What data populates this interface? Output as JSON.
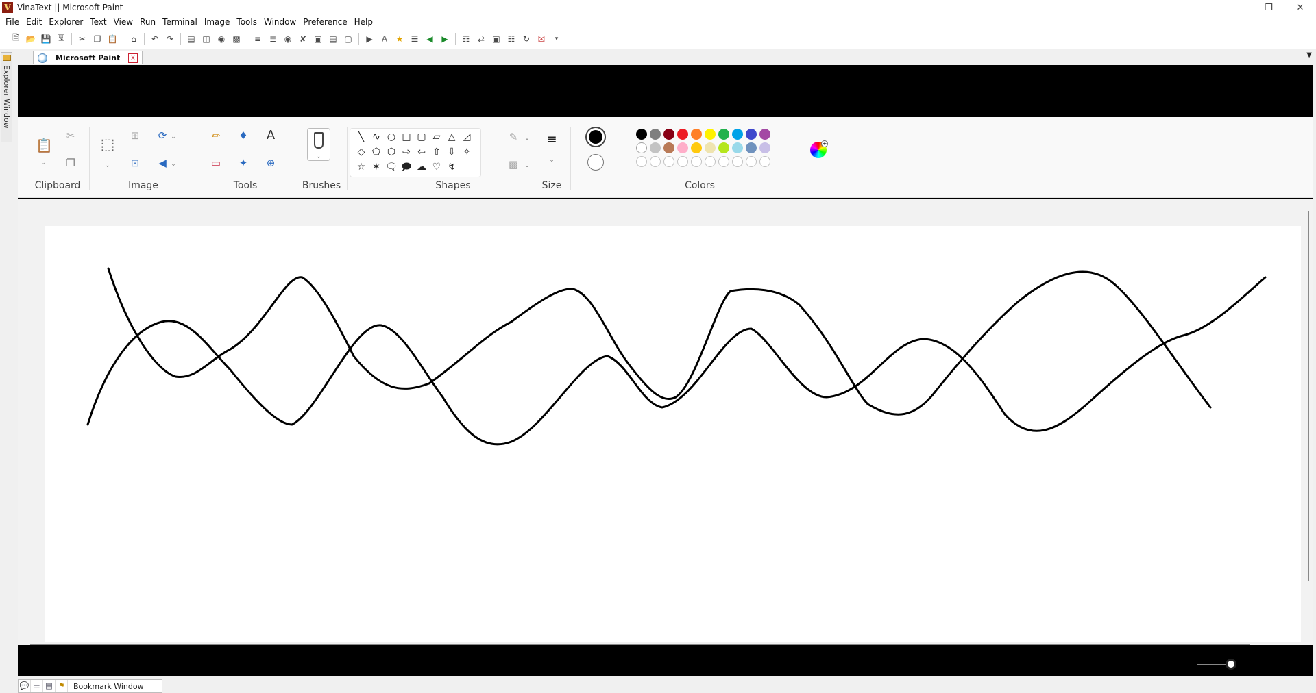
{
  "window": {
    "title": "VinaText || Microsoft Paint",
    "logo_letter": "V"
  },
  "menu": [
    "File",
    "Edit",
    "Explorer",
    "Text",
    "View",
    "Run",
    "Terminal",
    "Image",
    "Tools",
    "Window",
    "Preference",
    "Help"
  ],
  "left_panel": {
    "explorer_label": "Explorer Window"
  },
  "tab": {
    "label": "Microsoft Paint",
    "close": "x"
  },
  "ribbon": {
    "groups": {
      "clipboard": "Clipboard",
      "image": "Image",
      "tools": "Tools",
      "brushes": "Brushes",
      "shapes": "Shapes",
      "size": "Size",
      "colors": "Colors"
    }
  },
  "colors": {
    "primary": "#000000",
    "secondary": "#ffffff",
    "palette_row1": [
      "#000000",
      "#7f7f7f",
      "#880015",
      "#ed1c24",
      "#ff7f27",
      "#fff200",
      "#22b14c",
      "#00a2e8",
      "#3f48cc",
      "#a349a4"
    ],
    "palette_row2": [
      "#ffffff",
      "#c3c3c3",
      "#b97a57",
      "#ffaec9",
      "#ffc90e",
      "#efe4b0",
      "#b5e61d",
      "#99d9ea",
      "#7092be",
      "#c8bfe7"
    ],
    "palette_row3_empty": 10
  },
  "bottom": {
    "bookmark_label": "Bookmark Window"
  }
}
